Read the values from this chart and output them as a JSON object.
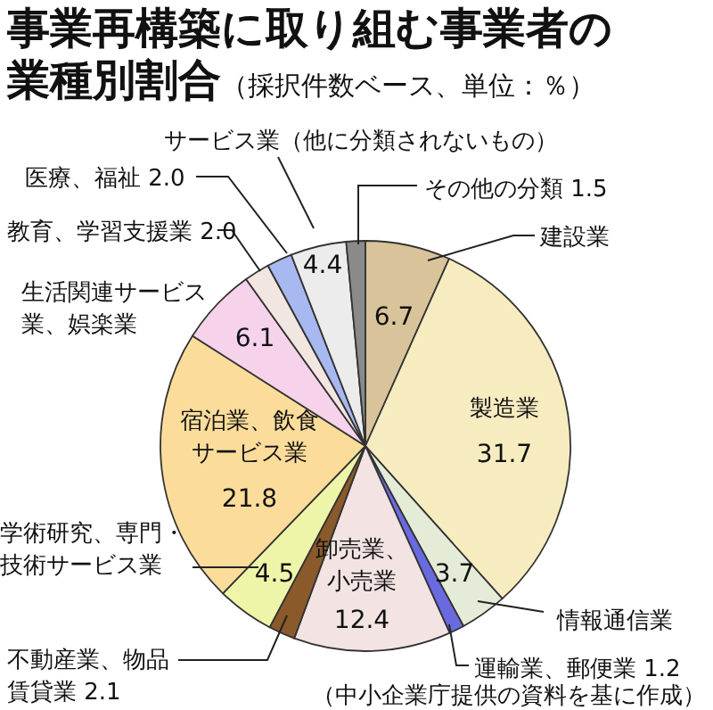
{
  "chart_data": {
    "type": "pie",
    "title": "事業再構築に取り組む事業者の業種別割合",
    "subtitle": "（採択件数ベース、単位：％）",
    "categories": [
      "建設業",
      "製造業",
      "情報通信業",
      "運輸業、郵便業",
      "卸売業、小売業",
      "不動産業、物品賃貸業",
      "学術研究、専門・技術サービス業",
      "宿泊業、飲食サービス業",
      "生活関連サービス業、娯楽業",
      "教育、学習支援業",
      "医療、福祉",
      "サービス業（他に分類されないもの）",
      "その他の分類"
    ],
    "values": [
      6.7,
      31.7,
      3.7,
      1.2,
      12.4,
      2.1,
      4.5,
      21.8,
      6.1,
      2.0,
      2.0,
      4.4,
      1.5
    ],
    "value_labels": [
      "6.7",
      "31.7",
      "3.7",
      "1.2",
      "12.4",
      "2.1",
      "4.5",
      "21.8",
      "6.1",
      "2.0",
      "2.0",
      "4.4",
      "1.5"
    ],
    "colors": [
      "#d9c39a",
      "#f7ecc0",
      "#e4ecd8",
      "#6a6ae0",
      "#f3e3e3",
      "#8b5a2b",
      "#eef5a8",
      "#fbdc9a",
      "#f6d3ea",
      "#f2e6e0",
      "#a8b8f0",
      "#ececec",
      "#8a8a8a"
    ],
    "annotations": [
      "（中小企業庁提供の資料を基に作成）"
    ]
  }
}
